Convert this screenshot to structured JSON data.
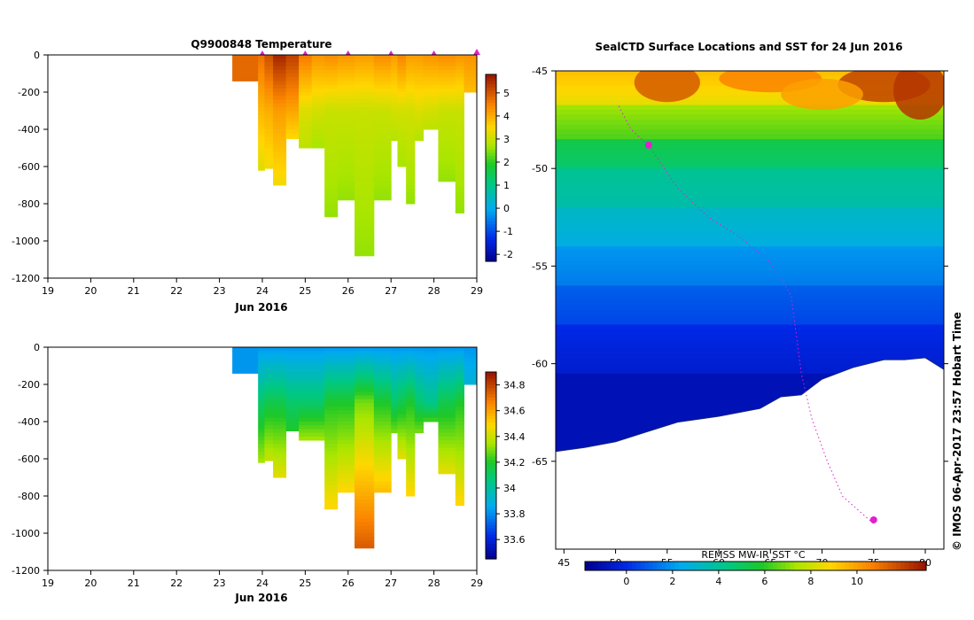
{
  "chart_data": [
    {
      "type": "heatmap",
      "title": "Q9900848  Temperature",
      "xlabel": "Jun 2016",
      "ylabel": "",
      "x_ticks": [
        19,
        20,
        21,
        22,
        23,
        24,
        25,
        26,
        27,
        28,
        29
      ],
      "y_ticks": [
        0,
        -200,
        -400,
        -600,
        -800,
        -1000,
        -1200
      ],
      "xlim": [
        19,
        29
      ],
      "ylim": [
        -1200,
        0
      ],
      "colorbar": {
        "min": -2.3,
        "max": 5.8,
        "ticks": [
          -2,
          -1,
          0,
          1,
          2,
          3,
          4,
          5
        ]
      },
      "profile_markers": [
        24,
        25,
        26,
        27,
        28,
        29
      ],
      "profiles": [
        {
          "t0": 23.3,
          "t1": 23.9,
          "depth": 140,
          "surface": 4.8,
          "mid": 4.8,
          "deep": 4.8
        },
        {
          "t0": 23.9,
          "t1": 24.05,
          "depth": 620,
          "surface": 4.7,
          "mid": 3.9,
          "deep": 3.2
        },
        {
          "t0": 24.05,
          "t1": 24.25,
          "depth": 610,
          "surface": 5.1,
          "mid": 4.0,
          "deep": 3.4
        },
        {
          "t0": 24.25,
          "t1": 24.55,
          "depth": 700,
          "surface": 5.6,
          "mid": 4.2,
          "deep": 3.4
        },
        {
          "t0": 24.55,
          "t1": 24.85,
          "depth": 450,
          "surface": 5.3,
          "mid": 4.1,
          "deep": 3.5
        },
        {
          "t0": 24.85,
          "t1": 25.15,
          "depth": 500,
          "surface": 4.6,
          "mid": 3.2,
          "deep": 2.9
        },
        {
          "t0": 25.15,
          "t1": 25.45,
          "depth": 500,
          "surface": 4.3,
          "mid": 3.1,
          "deep": 2.7
        },
        {
          "t0": 25.45,
          "t1": 25.75,
          "depth": 870,
          "surface": 4.4,
          "mid": 3.0,
          "deep": 2.6
        },
        {
          "t0": 25.75,
          "t1": 26.15,
          "depth": 780,
          "surface": 4.3,
          "mid": 3.0,
          "deep": 2.6
        },
        {
          "t0": 26.15,
          "t1": 26.6,
          "depth": 1080,
          "surface": 4.2,
          "mid": 3.0,
          "deep": 2.6
        },
        {
          "t0": 26.6,
          "t1": 27.0,
          "depth": 780,
          "surface": 4.4,
          "mid": 3.0,
          "deep": 2.6
        },
        {
          "t0": 27.0,
          "t1": 27.15,
          "depth": 460,
          "surface": 4.2,
          "mid": 3.1,
          "deep": 2.8
        },
        {
          "t0": 27.15,
          "t1": 27.35,
          "depth": 600,
          "surface": 4.5,
          "mid": 3.1,
          "deep": 2.7
        },
        {
          "t0": 27.35,
          "t1": 27.55,
          "depth": 800,
          "surface": 4.2,
          "mid": 3.1,
          "deep": 2.6
        },
        {
          "t0": 27.55,
          "t1": 27.75,
          "depth": 460,
          "surface": 4.2,
          "mid": 3.2,
          "deep": 2.8
        },
        {
          "t0": 27.75,
          "t1": 28.1,
          "depth": 400,
          "surface": 4.3,
          "mid": 3.1,
          "deep": 2.9
        },
        {
          "t0": 28.1,
          "t1": 28.5,
          "depth": 680,
          "surface": 4.4,
          "mid": 3.0,
          "deep": 2.6
        },
        {
          "t0": 28.5,
          "t1": 28.7,
          "depth": 850,
          "surface": 4.3,
          "mid": 3.0,
          "deep": 2.6
        },
        {
          "t0": 28.7,
          "t1": 29.05,
          "depth": 200,
          "surface": 4.3,
          "mid": 3.6,
          "deep": 3.3
        }
      ]
    },
    {
      "type": "heatmap",
      "title": "",
      "xlabel": "Jun 2016",
      "ylabel": "",
      "x_ticks": [
        19,
        20,
        21,
        22,
        23,
        24,
        25,
        26,
        27,
        28,
        29
      ],
      "y_ticks": [
        0,
        -200,
        -400,
        -600,
        -800,
        -1000,
        -1200
      ],
      "xlim": [
        19,
        29
      ],
      "ylim": [
        -1200,
        0
      ],
      "colorbar": {
        "min": 33.45,
        "max": 34.9,
        "ticks": [
          33.6,
          33.8,
          34,
          34.2,
          34.4,
          34.6,
          34.8
        ]
      },
      "profiles": [
        {
          "t0": 23.3,
          "t1": 23.9,
          "depth": 140,
          "surface": 33.82,
          "mid": 33.82,
          "deep": 33.85
        },
        {
          "t0": 23.9,
          "t1": 24.05,
          "depth": 620,
          "surface": 33.82,
          "mid": 34.1,
          "deep": 34.35
        },
        {
          "t0": 24.05,
          "t1": 24.25,
          "depth": 610,
          "surface": 33.82,
          "mid": 34.15,
          "deep": 34.4
        },
        {
          "t0": 24.25,
          "t1": 24.55,
          "depth": 700,
          "surface": 33.82,
          "mid": 34.15,
          "deep": 34.45
        },
        {
          "t0": 24.55,
          "t1": 24.85,
          "depth": 450,
          "surface": 33.82,
          "mid": 34.1,
          "deep": 34.2
        },
        {
          "t0": 24.85,
          "t1": 25.15,
          "depth": 500,
          "surface": 33.82,
          "mid": 34.1,
          "deep": 34.35
        },
        {
          "t0": 25.15,
          "t1": 25.45,
          "depth": 500,
          "surface": 33.82,
          "mid": 34.1,
          "deep": 34.35
        },
        {
          "t0": 25.45,
          "t1": 25.75,
          "depth": 870,
          "surface": 33.82,
          "mid": 34.2,
          "deep": 34.5
        },
        {
          "t0": 25.75,
          "t1": 26.15,
          "depth": 780,
          "surface": 33.82,
          "mid": 34.2,
          "deep": 34.5
        },
        {
          "t0": 26.15,
          "t1": 26.6,
          "depth": 1080,
          "surface": 33.82,
          "mid": 34.3,
          "deep": 34.75
        },
        {
          "t0": 26.6,
          "t1": 27.0,
          "depth": 780,
          "surface": 33.82,
          "mid": 34.2,
          "deep": 34.55
        },
        {
          "t0": 27.0,
          "t1": 27.15,
          "depth": 460,
          "surface": 33.82,
          "mid": 34.1,
          "deep": 34.3
        },
        {
          "t0": 27.15,
          "t1": 27.35,
          "depth": 600,
          "surface": 33.82,
          "mid": 34.15,
          "deep": 34.45
        },
        {
          "t0": 27.35,
          "t1": 27.55,
          "depth": 800,
          "surface": 33.82,
          "mid": 34.2,
          "deep": 34.5
        },
        {
          "t0": 27.55,
          "t1": 27.75,
          "depth": 460,
          "surface": 33.82,
          "mid": 34.1,
          "deep": 34.3
        },
        {
          "t0": 27.75,
          "t1": 28.1,
          "depth": 400,
          "surface": 33.82,
          "mid": 34.05,
          "deep": 34.25
        },
        {
          "t0": 28.1,
          "t1": 28.5,
          "depth": 680,
          "surface": 33.82,
          "mid": 34.15,
          "deep": 34.45
        },
        {
          "t0": 28.5,
          "t1": 28.7,
          "depth": 850,
          "surface": 33.82,
          "mid": 34.2,
          "deep": 34.5
        },
        {
          "t0": 28.7,
          "t1": 29.05,
          "depth": 200,
          "surface": 33.82,
          "mid": 33.95,
          "deep": 34.0
        }
      ]
    },
    {
      "type": "heatmap",
      "title": "SealCTD Surface Locations and SST for 24 Jun 2016",
      "xlabel": "",
      "ylabel": "",
      "x_ticks": [
        45,
        50,
        55,
        60,
        65,
        70,
        75,
        80
      ],
      "y_ticks": [
        -45,
        -50,
        -55,
        -60,
        -65
      ],
      "xlim": [
        44.2,
        81.8
      ],
      "ylim": [
        -69.5,
        -45
      ],
      "colorbar": {
        "label": "REMSS MW-IR SST °C",
        "min": -1.8,
        "max": 13,
        "ticks": [
          0,
          2,
          4,
          6,
          8,
          10
        ]
      },
      "sst_bands": [
        {
          "lat_top": -45,
          "lat_bot": -46.8,
          "sst": 9.4
        },
        {
          "lat_top": -46.8,
          "lat_bot": -48.5,
          "sst": 7.3
        },
        {
          "lat_top": -48.5,
          "lat_bot": -50.0,
          "sst": 5.4
        },
        {
          "lat_top": -50.0,
          "lat_bot": -52.0,
          "sst": 4.1
        },
        {
          "lat_top": -52.0,
          "lat_bot": -54.0,
          "sst": 3.2
        },
        {
          "lat_top": -54.0,
          "lat_bot": -56.0,
          "sst": 2.0
        },
        {
          "lat_top": -56.0,
          "lat_bot": -58.0,
          "sst": 1.0
        },
        {
          "lat_top": -58.0,
          "lat_bot": -60.5,
          "sst": 0.0
        },
        {
          "lat_top": -60.5,
          "lat_bot": -69.5,
          "sst": -1.0
        }
      ],
      "ice_edge": [
        [
          44.2,
          -64.5
        ],
        [
          47,
          -64.3
        ],
        [
          50,
          -64.0
        ],
        [
          53,
          -63.5
        ],
        [
          56,
          -63.0
        ],
        [
          60,
          -62.7
        ],
        [
          64,
          -62.3
        ],
        [
          66,
          -61.7
        ],
        [
          68,
          -61.6
        ],
        [
          70,
          -60.8
        ],
        [
          73,
          -60.2
        ],
        [
          76,
          -59.8
        ],
        [
          78,
          -59.8
        ],
        [
          80,
          -59.7
        ],
        [
          81.8,
          -60.3
        ]
      ],
      "tracks": [
        {
          "name": "",
          "points": [
            [
              50.3,
              -46.8
            ],
            [
              51.0,
              -47.5
            ],
            [
              51.5,
              -48.0
            ],
            [
              52.3,
              -48.4
            ],
            [
              53.2,
              -48.8
            ]
          ]
        },
        {
          "name": "",
          "points": [
            [
              53.2,
              -48.8
            ],
            [
              56,
              -51.0
            ],
            [
              59,
              -52.5
            ],
            [
              62,
              -53.5
            ],
            [
              65,
              -54.8
            ],
            [
              67,
              -56.5
            ],
            [
              67.5,
              -58.5
            ],
            [
              68.0,
              -60.5
            ],
            [
              69.0,
              -62.8
            ],
            [
              70.5,
              -65.0
            ],
            [
              72.0,
              -66.8
            ],
            [
              75.0,
              -68.2
            ]
          ]
        }
      ],
      "seal_locations": [
        [
          75.0,
          -68.0
        ],
        [
          53.2,
          -48.8
        ]
      ],
      "annotation": "© IMOS 06-Apr-2017 23:57 Hobart Time"
    }
  ],
  "colors": {
    "profile_marker": "#e020d0",
    "track": "#e020d0",
    "ice": "#ffffff",
    "panel_border": "#000000"
  }
}
